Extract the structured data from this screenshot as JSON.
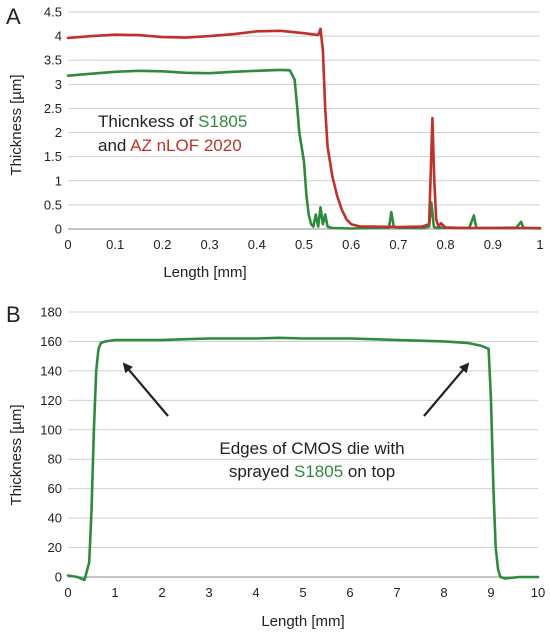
{
  "chart_data": [
    {
      "panel": "A",
      "type": "line",
      "xlabel": "Length [mm]",
      "ylabel": "Thickness [µm]",
      "xlim": [
        0,
        1
      ],
      "ylim": [
        0,
        4.5
      ],
      "xticks": [
        "0",
        "0.1",
        "0.2",
        "0.3",
        "0.4",
        "0.5",
        "0.6",
        "0.7",
        "0.8",
        "0.9",
        "1"
      ],
      "yticks": [
        "0",
        "0.5",
        "1",
        "1.5",
        "2",
        "2.5",
        "3",
        "3.5",
        "4",
        "4.5"
      ],
      "grid": true,
      "annotation": {
        "prefix": "Thicnkess of ",
        "green_word": "S1805",
        "middle": "and ",
        "red_word": "AZ nLOF 2020"
      },
      "series": [
        {
          "color": "#2e8b3e",
          "x": [
            0,
            0.05,
            0.1,
            0.15,
            0.2,
            0.25,
            0.3,
            0.35,
            0.4,
            0.45,
            0.47,
            0.48,
            0.485,
            0.49,
            0.5,
            0.505,
            0.51,
            0.515,
            0.52,
            0.525,
            0.53,
            0.535,
            0.54,
            0.545,
            0.55,
            0.56,
            0.6,
            0.65,
            0.68,
            0.685,
            0.69,
            0.7,
            0.75,
            0.765,
            0.77,
            0.775,
            0.78,
            0.79,
            0.85,
            0.86,
            0.865,
            0.87,
            0.9,
            0.95,
            0.96,
            0.965,
            0.97,
            1.0
          ],
          "y": [
            3.18,
            3.22,
            3.26,
            3.28,
            3.27,
            3.24,
            3.23,
            3.26,
            3.28,
            3.3,
            3.29,
            3.1,
            2.6,
            2.0,
            1.4,
            0.7,
            0.3,
            0.1,
            0.05,
            0.3,
            0.05,
            0.45,
            0.1,
            0.3,
            0.05,
            0.02,
            0.01,
            0.02,
            0.03,
            0.35,
            0.05,
            0.02,
            0.02,
            0.05,
            0.55,
            0.05,
            0.02,
            0.03,
            0.02,
            0.28,
            0.03,
            0.02,
            0.02,
            0.03,
            0.15,
            0.02,
            0.02,
            0.01
          ]
        },
        {
          "color": "#c0312b",
          "x": [
            0,
            0.05,
            0.1,
            0.15,
            0.2,
            0.25,
            0.3,
            0.35,
            0.4,
            0.45,
            0.5,
            0.53,
            0.535,
            0.54,
            0.545,
            0.55,
            0.56,
            0.57,
            0.58,
            0.59,
            0.6,
            0.62,
            0.65,
            0.7,
            0.75,
            0.765,
            0.768,
            0.772,
            0.776,
            0.78,
            0.785,
            0.79,
            0.8,
            0.85,
            0.9,
            0.95,
            1.0
          ],
          "y": [
            3.96,
            4.0,
            4.03,
            4.02,
            3.98,
            3.97,
            4.0,
            4.04,
            4.1,
            4.11,
            4.06,
            4.02,
            4.15,
            3.7,
            2.5,
            1.7,
            1.1,
            0.7,
            0.4,
            0.2,
            0.1,
            0.05,
            0.05,
            0.04,
            0.05,
            0.1,
            1.0,
            2.3,
            1.0,
            0.2,
            0.05,
            0.12,
            0.03,
            0.02,
            0.02,
            0.02,
            0.02
          ]
        }
      ]
    },
    {
      "panel": "B",
      "type": "line",
      "xlabel": "Length [mm]",
      "ylabel": "Thickness [µm]",
      "xlim": [
        0,
        10
      ],
      "ylim": [
        0,
        180
      ],
      "xticks": [
        "0",
        "1",
        "2",
        "3",
        "4",
        "5",
        "6",
        "7",
        "8",
        "9",
        "10"
      ],
      "yticks": [
        "0",
        "20",
        "40",
        "60",
        "80",
        "100",
        "120",
        "140",
        "160",
        "180"
      ],
      "grid": true,
      "annotation": {
        "line1": "Edges of CMOS die with",
        "prefix": "sprayed ",
        "green_word": "S1805",
        "suffix": " on top"
      },
      "series": [
        {
          "color": "#2e8b3e",
          "x": [
            0,
            0.2,
            0.35,
            0.45,
            0.5,
            0.55,
            0.6,
            0.65,
            0.7,
            0.8,
            1.0,
            1.5,
            2.0,
            2.5,
            3.0,
            3.5,
            4.0,
            4.5,
            5.0,
            5.5,
            6.0,
            6.5,
            7.0,
            7.5,
            8.0,
            8.5,
            8.8,
            8.95,
            9.0,
            9.05,
            9.1,
            9.15,
            9.2,
            9.3,
            9.6,
            10.0
          ],
          "y": [
            1,
            0,
            -2,
            10,
            45,
            100,
            140,
            155,
            159,
            160,
            161,
            161,
            161,
            161.5,
            162,
            162,
            162,
            162.5,
            162,
            162,
            162,
            161.5,
            161,
            160.5,
            160,
            159,
            157,
            155,
            120,
            60,
            20,
            5,
            0,
            -1,
            0,
            0
          ]
        }
      ]
    }
  ],
  "panel_letters": [
    "A",
    "B"
  ]
}
